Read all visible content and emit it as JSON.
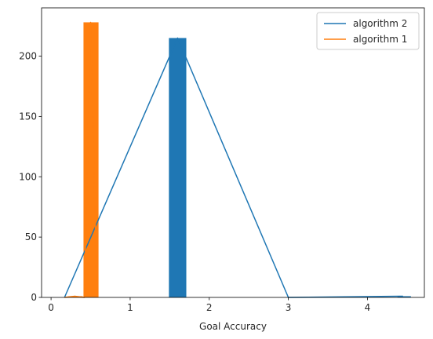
{
  "chart_data": {
    "type": "bar",
    "title": "",
    "xlabel": "Goal Accuracy",
    "ylabel": "",
    "xlim": [
      -0.12,
      4.72
    ],
    "ylim": [
      0,
      240
    ],
    "xticks": [
      0,
      1,
      2,
      3,
      4
    ],
    "yticks": [
      0,
      50,
      100,
      150,
      200
    ],
    "grid": false,
    "legend_position": "top-right",
    "series": [
      {
        "name": "algorithm 2",
        "color": "#1f77b4",
        "line": {
          "x": [
            0.17,
            1.6,
            3.0,
            4.45
          ],
          "y": [
            0,
            215,
            0,
            1
          ]
        },
        "bars": [
          {
            "x0": 1.49,
            "x1": 1.71,
            "height": 215
          },
          {
            "x0": 4.38,
            "x1": 4.55,
            "height": 1
          }
        ]
      },
      {
        "name": "algorithm 1",
        "color": "#ff7f0e",
        "line": {
          "x": [
            0.17,
            0.3,
            0.42,
            0.5,
            0.58
          ],
          "y": [
            0,
            1,
            0,
            228,
            0
          ]
        },
        "bars": [
          {
            "x0": 0.41,
            "x1": 0.6,
            "height": 228
          },
          {
            "x0": 0.22,
            "x1": 0.4,
            "height": 1
          }
        ]
      }
    ]
  }
}
